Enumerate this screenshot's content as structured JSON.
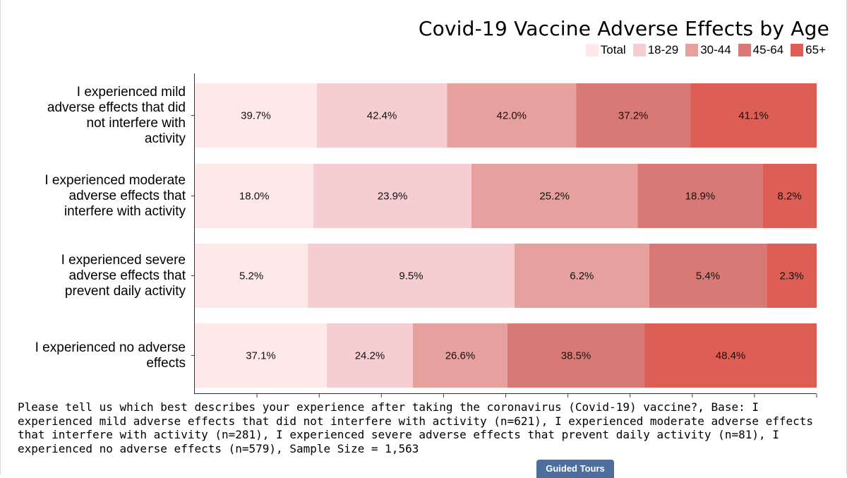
{
  "chart_data": {
    "type": "bar",
    "orientation": "horizontal",
    "stacked": true,
    "title": "Covid-19 Vaccine Adverse Effects by Age",
    "categories": [
      "I experienced mild adverse effects that did not interfere with activity",
      "I experienced moderate adverse effects that interfere with activity",
      "I experienced severe adverse effects that prevent daily activity",
      "I experienced no adverse effects"
    ],
    "category_lines": [
      [
        "I experienced mild",
        "adverse effects that did",
        "not interfere with",
        "activity"
      ],
      [
        "I experienced moderate",
        "adverse effects that",
        "interfere with activity"
      ],
      [
        "I experienced severe",
        "adverse effects that",
        "prevent daily activity"
      ],
      [
        "I experienced no adverse",
        "effects"
      ]
    ],
    "series": [
      {
        "name": "Total",
        "color": "#fde8ea",
        "values": [
          39.7,
          18.0,
          5.2,
          37.1
        ]
      },
      {
        "name": "18-29",
        "color": "#f6cdd1",
        "values": [
          42.4,
          23.9,
          9.5,
          24.2
        ]
      },
      {
        "name": "30-44",
        "color": "#e6a19e",
        "values": [
          42.0,
          25.2,
          6.2,
          26.6
        ]
      },
      {
        "name": "45-64",
        "color": "#d97975",
        "values": [
          37.2,
          18.9,
          5.4,
          38.5
        ]
      },
      {
        "name": "65+",
        "color": "#dd5e55",
        "values": [
          41.1,
          8.2,
          2.3,
          48.4
        ]
      }
    ],
    "value_format": "%",
    "legend_position": "top-right",
    "grid": false
  },
  "footnote": "Please tell us which best describes your experience after taking the coronavirus (Covid-19) vaccine?, Base: I experienced mild adverse effects that did not interfere with activity (n=621), I experienced moderate adverse effects that interfere with activity (n=281), I experienced severe adverse effects that prevent daily activity (n=81), I experienced no adverse effects (n=579), Sample Size = 1,563",
  "guided_tours_label": "Guided Tours"
}
